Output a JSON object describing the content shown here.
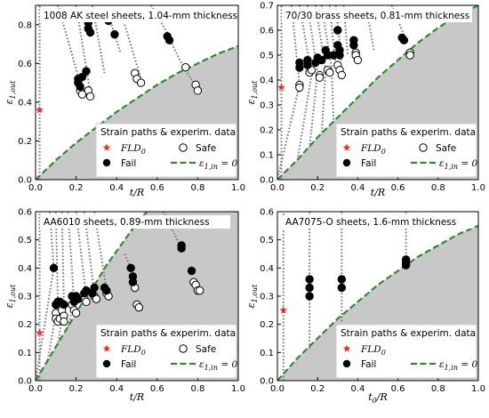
{
  "chart_data": [
    {
      "type": "scatter",
      "title": "1008 AK steel sheets, 1.04-mm thickness",
      "xlabel": "t/R",
      "ylabel": "ε1,out",
      "xlim": [
        0,
        1.0
      ],
      "ylim": [
        0,
        0.9
      ],
      "xticks": [
        "0.0",
        "0.2",
        "0.4",
        "0.6",
        "0.8",
        "1.0"
      ],
      "yticks": [
        "0.0",
        "0.2",
        "0.4",
        "0.6",
        "0.8"
      ],
      "legend": {
        "title": "Strain paths & experim. data",
        "fld0": "FLD",
        "fld0_sub": "0",
        "safe": "Safe",
        "fail": "Fail",
        "fld_curve": "ε1,in = 0"
      },
      "fld0": {
        "x": 0.02,
        "y": 0.36
      },
      "fld_curve": {
        "x": [
          0,
          0.05,
          0.1,
          0.2,
          0.3,
          0.4,
          0.5,
          0.6,
          0.7,
          0.8,
          0.9,
          1.0
        ],
        "y": [
          0,
          0.05,
          0.1,
          0.19,
          0.27,
          0.35,
          0.42,
          0.49,
          0.55,
          0.6,
          0.65,
          0.69
        ]
      },
      "strain_paths": [
        [
          [
            0.02,
            0.0
          ],
          [
            0.02,
            0.9
          ]
        ],
        [
          [
            0.11,
            0.9
          ],
          [
            0.22,
            0.5
          ]
        ],
        [
          [
            0.2,
            0.9
          ],
          [
            0.27,
            0.45
          ]
        ],
        [
          [
            0.28,
            0.9
          ],
          [
            0.34,
            0.55
          ]
        ],
        [
          [
            0.36,
            0.85
          ],
          [
            0.42,
            0.65
          ]
        ],
        [
          [
            0.44,
            0.8
          ],
          [
            0.52,
            0.52
          ]
        ],
        [
          [
            0.57,
            0.9
          ],
          [
            0.67,
            0.72
          ]
        ],
        [
          [
            0.65,
            0.75
          ],
          [
            0.72,
            0.6
          ]
        ],
        [
          [
            0.73,
            0.58
          ],
          [
            0.8,
            0.47
          ]
        ]
      ],
      "fail": [
        [
          0.21,
          0.52
        ],
        [
          0.21,
          0.5
        ],
        [
          0.22,
          0.48
        ],
        [
          0.23,
          0.53
        ],
        [
          0.25,
          0.56
        ],
        [
          0.26,
          0.81
        ],
        [
          0.26,
          0.78
        ],
        [
          0.27,
          0.76
        ],
        [
          0.36,
          0.82
        ],
        [
          0.39,
          0.75
        ],
        [
          0.65,
          0.74
        ],
        [
          0.66,
          0.72
        ]
      ],
      "safe": [
        [
          0.22,
          0.46
        ],
        [
          0.23,
          0.44
        ],
        [
          0.26,
          0.46
        ],
        [
          0.27,
          0.43
        ],
        [
          0.49,
          0.55
        ],
        [
          0.5,
          0.52
        ],
        [
          0.52,
          0.5
        ],
        [
          0.74,
          0.58
        ],
        [
          0.79,
          0.49
        ],
        [
          0.8,
          0.46
        ]
      ]
    },
    {
      "type": "scatter",
      "title": "70/30 brass sheets, 0.81-mm thickness",
      "xlabel": "t/R",
      "ylabel": "ε1,out",
      "xlim": [
        0,
        1.0
      ],
      "ylim": [
        0,
        0.7
      ],
      "xticks": [
        "0.0",
        "0.2",
        "0.4",
        "0.6",
        "0.8",
        "1.0"
      ],
      "yticks": [
        "0.0",
        "0.1",
        "0.2",
        "0.3",
        "0.4",
        "0.5",
        "0.6",
        "0.7"
      ],
      "legend": {
        "title": "Strain paths & experim. data",
        "fld0": "FLD",
        "fld0_sub": "0",
        "safe": "Safe",
        "fail": "Fail",
        "fld_curve": "ε1,in = 0"
      },
      "fld0": {
        "x": 0.02,
        "y": 0.37
      },
      "fld_curve": {
        "x": [
          0,
          0.05,
          0.1,
          0.2,
          0.3,
          0.4,
          0.5,
          0.6,
          0.7,
          0.8,
          0.9,
          1.0
        ],
        "y": [
          0,
          0.04,
          0.08,
          0.17,
          0.25,
          0.33,
          0.41,
          0.48,
          0.55,
          0.61,
          0.66,
          0.7
        ]
      },
      "strain_paths": [
        [
          [
            0.02,
            0.0
          ],
          [
            0.02,
            0.7
          ]
        ],
        [
          [
            0.07,
            0.7
          ],
          [
            0.11,
            0.38
          ]
        ],
        [
          [
            0.11,
            0.7
          ],
          [
            0.17,
            0.42
          ]
        ],
        [
          [
            0.15,
            0.7
          ],
          [
            0.2,
            0.43
          ]
        ],
        [
          [
            0.19,
            0.7
          ],
          [
            0.24,
            0.44
          ]
        ],
        [
          [
            0.22,
            0.7
          ],
          [
            0.27,
            0.45
          ]
        ],
        [
          [
            0.26,
            0.7
          ],
          [
            0.29,
            0.46
          ]
        ],
        [
          [
            0.29,
            0.7
          ],
          [
            0.32,
            0.48
          ]
        ],
        [
          [
            0.33,
            0.7
          ],
          [
            0.35,
            0.5
          ]
        ],
        [
          [
            0.45,
            0.66
          ],
          [
            0.48,
            0.52
          ]
        ],
        [
          [
            0.57,
            0.7
          ],
          [
            0.64,
            0.56
          ]
        ],
        [
          [
            0.11,
            0.38
          ],
          [
            0.0,
            0.0
          ]
        ],
        [
          [
            0.17,
            0.42
          ],
          [
            0.1,
            0.08
          ]
        ],
        [
          [
            0.2,
            0.43
          ],
          [
            0.16,
            0.13
          ]
        ],
        [
          [
            0.24,
            0.44
          ],
          [
            0.22,
            0.18
          ]
        ],
        [
          [
            0.27,
            0.45
          ],
          [
            0.28,
            0.23
          ]
        ]
      ],
      "fail": [
        [
          0.11,
          0.47
        ],
        [
          0.11,
          0.45
        ],
        [
          0.15,
          0.48
        ],
        [
          0.15,
          0.46
        ],
        [
          0.19,
          0.47
        ],
        [
          0.2,
          0.49
        ],
        [
          0.22,
          0.48
        ],
        [
          0.24,
          0.52
        ],
        [
          0.25,
          0.5
        ],
        [
          0.28,
          0.5
        ],
        [
          0.3,
          0.6
        ],
        [
          0.3,
          0.54
        ],
        [
          0.31,
          0.52
        ],
        [
          0.31,
          0.5
        ],
        [
          0.38,
          0.56
        ],
        [
          0.38,
          0.54
        ],
        [
          0.62,
          0.57
        ],
        [
          0.63,
          0.56
        ]
      ],
      "safe": [
        [
          0.11,
          0.38
        ],
        [
          0.11,
          0.37
        ],
        [
          0.16,
          0.43
        ],
        [
          0.17,
          0.44
        ],
        [
          0.21,
          0.42
        ],
        [
          0.21,
          0.41
        ],
        [
          0.25,
          0.44
        ],
        [
          0.26,
          0.43
        ],
        [
          0.3,
          0.46
        ],
        [
          0.31,
          0.44
        ],
        [
          0.32,
          0.42
        ],
        [
          0.39,
          0.51
        ],
        [
          0.39,
          0.5
        ],
        [
          0.4,
          0.48
        ],
        [
          0.66,
          0.51
        ],
        [
          0.66,
          0.5
        ]
      ]
    },
    {
      "type": "scatter",
      "title": "AA6010 sheets, 0.89-mm thickness",
      "xlabel": "t/R",
      "ylabel": "ε1,out",
      "xlim": [
        0,
        1.0
      ],
      "ylim": [
        0,
        0.6
      ],
      "xticks": [
        "0.0",
        "0.2",
        "0.4",
        "0.6",
        "0.8",
        "1.0"
      ],
      "yticks": [
        "0.0",
        "0.1",
        "0.2",
        "0.3",
        "0.4",
        "0.5",
        "0.6"
      ],
      "legend": {
        "title": "Strain paths & experim. data",
        "fld0": "FLD",
        "fld0_sub": "0",
        "safe": "Safe",
        "fail": "Fail",
        "fld_curve": "ε1,in = 0"
      },
      "fld0": {
        "x": 0.02,
        "y": 0.17
      },
      "fld_curve": {
        "x": [
          0,
          0.05,
          0.1,
          0.15,
          0.2,
          0.25,
          0.3,
          0.35,
          0.4,
          0.45,
          0.5,
          0.55
        ],
        "y": [
          0,
          0.06,
          0.12,
          0.18,
          0.24,
          0.3,
          0.35,
          0.41,
          0.46,
          0.51,
          0.56,
          0.6
        ]
      },
      "strain_paths": [
        [
          [
            0.02,
            0.0
          ],
          [
            0.02,
            0.6
          ]
        ],
        [
          [
            0.07,
            0.6
          ],
          [
            0.09,
            0.4
          ]
        ],
        [
          [
            0.1,
            0.6
          ],
          [
            0.11,
            0.28
          ]
        ],
        [
          [
            0.13,
            0.6
          ],
          [
            0.14,
            0.26
          ]
        ],
        [
          [
            0.16,
            0.6
          ],
          [
            0.19,
            0.28
          ]
        ],
        [
          [
            0.2,
            0.6
          ],
          [
            0.25,
            0.3
          ]
        ],
        [
          [
            0.24,
            0.6
          ],
          [
            0.29,
            0.31
          ]
        ],
        [
          [
            0.29,
            0.6
          ],
          [
            0.35,
            0.32
          ]
        ],
        [
          [
            0.44,
            0.45
          ],
          [
            0.5,
            0.35
          ]
        ],
        [
          [
            0.63,
            0.6
          ],
          [
            0.72,
            0.47
          ]
        ],
        [
          [
            0.09,
            0.4
          ],
          [
            0.0,
            0.0
          ]
        ],
        [
          [
            0.11,
            0.28
          ],
          [
            0.06,
            0.07
          ]
        ],
        [
          [
            0.14,
            0.26
          ],
          [
            0.11,
            0.13
          ]
        ],
        [
          [
            0.19,
            0.28
          ],
          [
            0.16,
            0.19
          ]
        ]
      ],
      "fail": [
        [
          0.09,
          0.4
        ],
        [
          0.1,
          0.27
        ],
        [
          0.11,
          0.28
        ],
        [
          0.12,
          0.28
        ],
        [
          0.14,
          0.27
        ],
        [
          0.18,
          0.3
        ],
        [
          0.19,
          0.28
        ],
        [
          0.2,
          0.3
        ],
        [
          0.21,
          0.29
        ],
        [
          0.24,
          0.31
        ],
        [
          0.25,
          0.32
        ],
        [
          0.28,
          0.31
        ],
        [
          0.29,
          0.33
        ],
        [
          0.34,
          0.33
        ],
        [
          0.35,
          0.32
        ],
        [
          0.47,
          0.4
        ],
        [
          0.48,
          0.37
        ],
        [
          0.48,
          0.35
        ],
        [
          0.72,
          0.48
        ],
        [
          0.72,
          0.47
        ],
        [
          0.77,
          0.39
        ]
      ],
      "safe": [
        [
          0.1,
          0.24
        ],
        [
          0.1,
          0.22
        ],
        [
          0.11,
          0.21
        ],
        [
          0.12,
          0.22
        ],
        [
          0.13,
          0.25
        ],
        [
          0.14,
          0.23
        ],
        [
          0.14,
          0.21
        ],
        [
          0.18,
          0.27
        ],
        [
          0.19,
          0.25
        ],
        [
          0.2,
          0.24
        ],
        [
          0.24,
          0.29
        ],
        [
          0.25,
          0.28
        ],
        [
          0.29,
          0.3
        ],
        [
          0.3,
          0.29
        ],
        [
          0.35,
          0.31
        ],
        [
          0.36,
          0.3
        ],
        [
          0.49,
          0.33
        ],
        [
          0.5,
          0.27
        ],
        [
          0.51,
          0.26
        ],
        [
          0.78,
          0.35
        ],
        [
          0.79,
          0.34
        ],
        [
          0.8,
          0.32
        ],
        [
          0.81,
          0.32
        ]
      ]
    },
    {
      "type": "scatter",
      "title": "AA7075-O sheets, 1.6-mm thickness",
      "xlabel": "t0/R",
      "ylabel": "ε1,out",
      "xlim": [
        0,
        1.0
      ],
      "ylim": [
        0,
        0.6
      ],
      "xticks": [
        "0.0",
        "0.2",
        "0.4",
        "0.6",
        "0.8",
        "1.0"
      ],
      "yticks": [
        "0.0",
        "0.1",
        "0.2",
        "0.3",
        "0.4",
        "0.5",
        "0.6"
      ],
      "legend": {
        "title": "Strain paths & experim. data",
        "fld0": "FLD",
        "fld0_sub": "0",
        "fail": "Fail",
        "fld_curve": "ε1,in = 0"
      },
      "fld0": {
        "x": 0.03,
        "y": 0.25
      },
      "fld_curve": {
        "x": [
          0,
          0.05,
          0.1,
          0.2,
          0.3,
          0.4,
          0.5,
          0.6,
          0.7,
          0.8,
          0.9,
          1.0
        ],
        "y": [
          0,
          0.04,
          0.08,
          0.15,
          0.22,
          0.28,
          0.34,
          0.39,
          0.44,
          0.48,
          0.52,
          0.55
        ]
      },
      "strain_paths": [
        [
          [
            0.03,
            0.0
          ],
          [
            0.03,
            0.6
          ]
        ],
        [
          [
            0.16,
            0.6
          ],
          [
            0.16,
            0.36
          ]
        ],
        [
          [
            0.16,
            0.36
          ],
          [
            0.16,
            0.11
          ]
        ],
        [
          [
            0.32,
            0.6
          ],
          [
            0.32,
            0.36
          ]
        ],
        [
          [
            0.32,
            0.36
          ],
          [
            0.32,
            0.21
          ]
        ],
        [
          [
            0.64,
            0.6
          ],
          [
            0.64,
            0.43
          ]
        ]
      ],
      "fail": [
        [
          0.16,
          0.36
        ],
        [
          0.16,
          0.33
        ],
        [
          0.16,
          0.3
        ],
        [
          0.32,
          0.36
        ],
        [
          0.32,
          0.33
        ],
        [
          0.64,
          0.43
        ],
        [
          0.64,
          0.42
        ],
        [
          0.64,
          0.41
        ]
      ],
      "safe": []
    }
  ]
}
